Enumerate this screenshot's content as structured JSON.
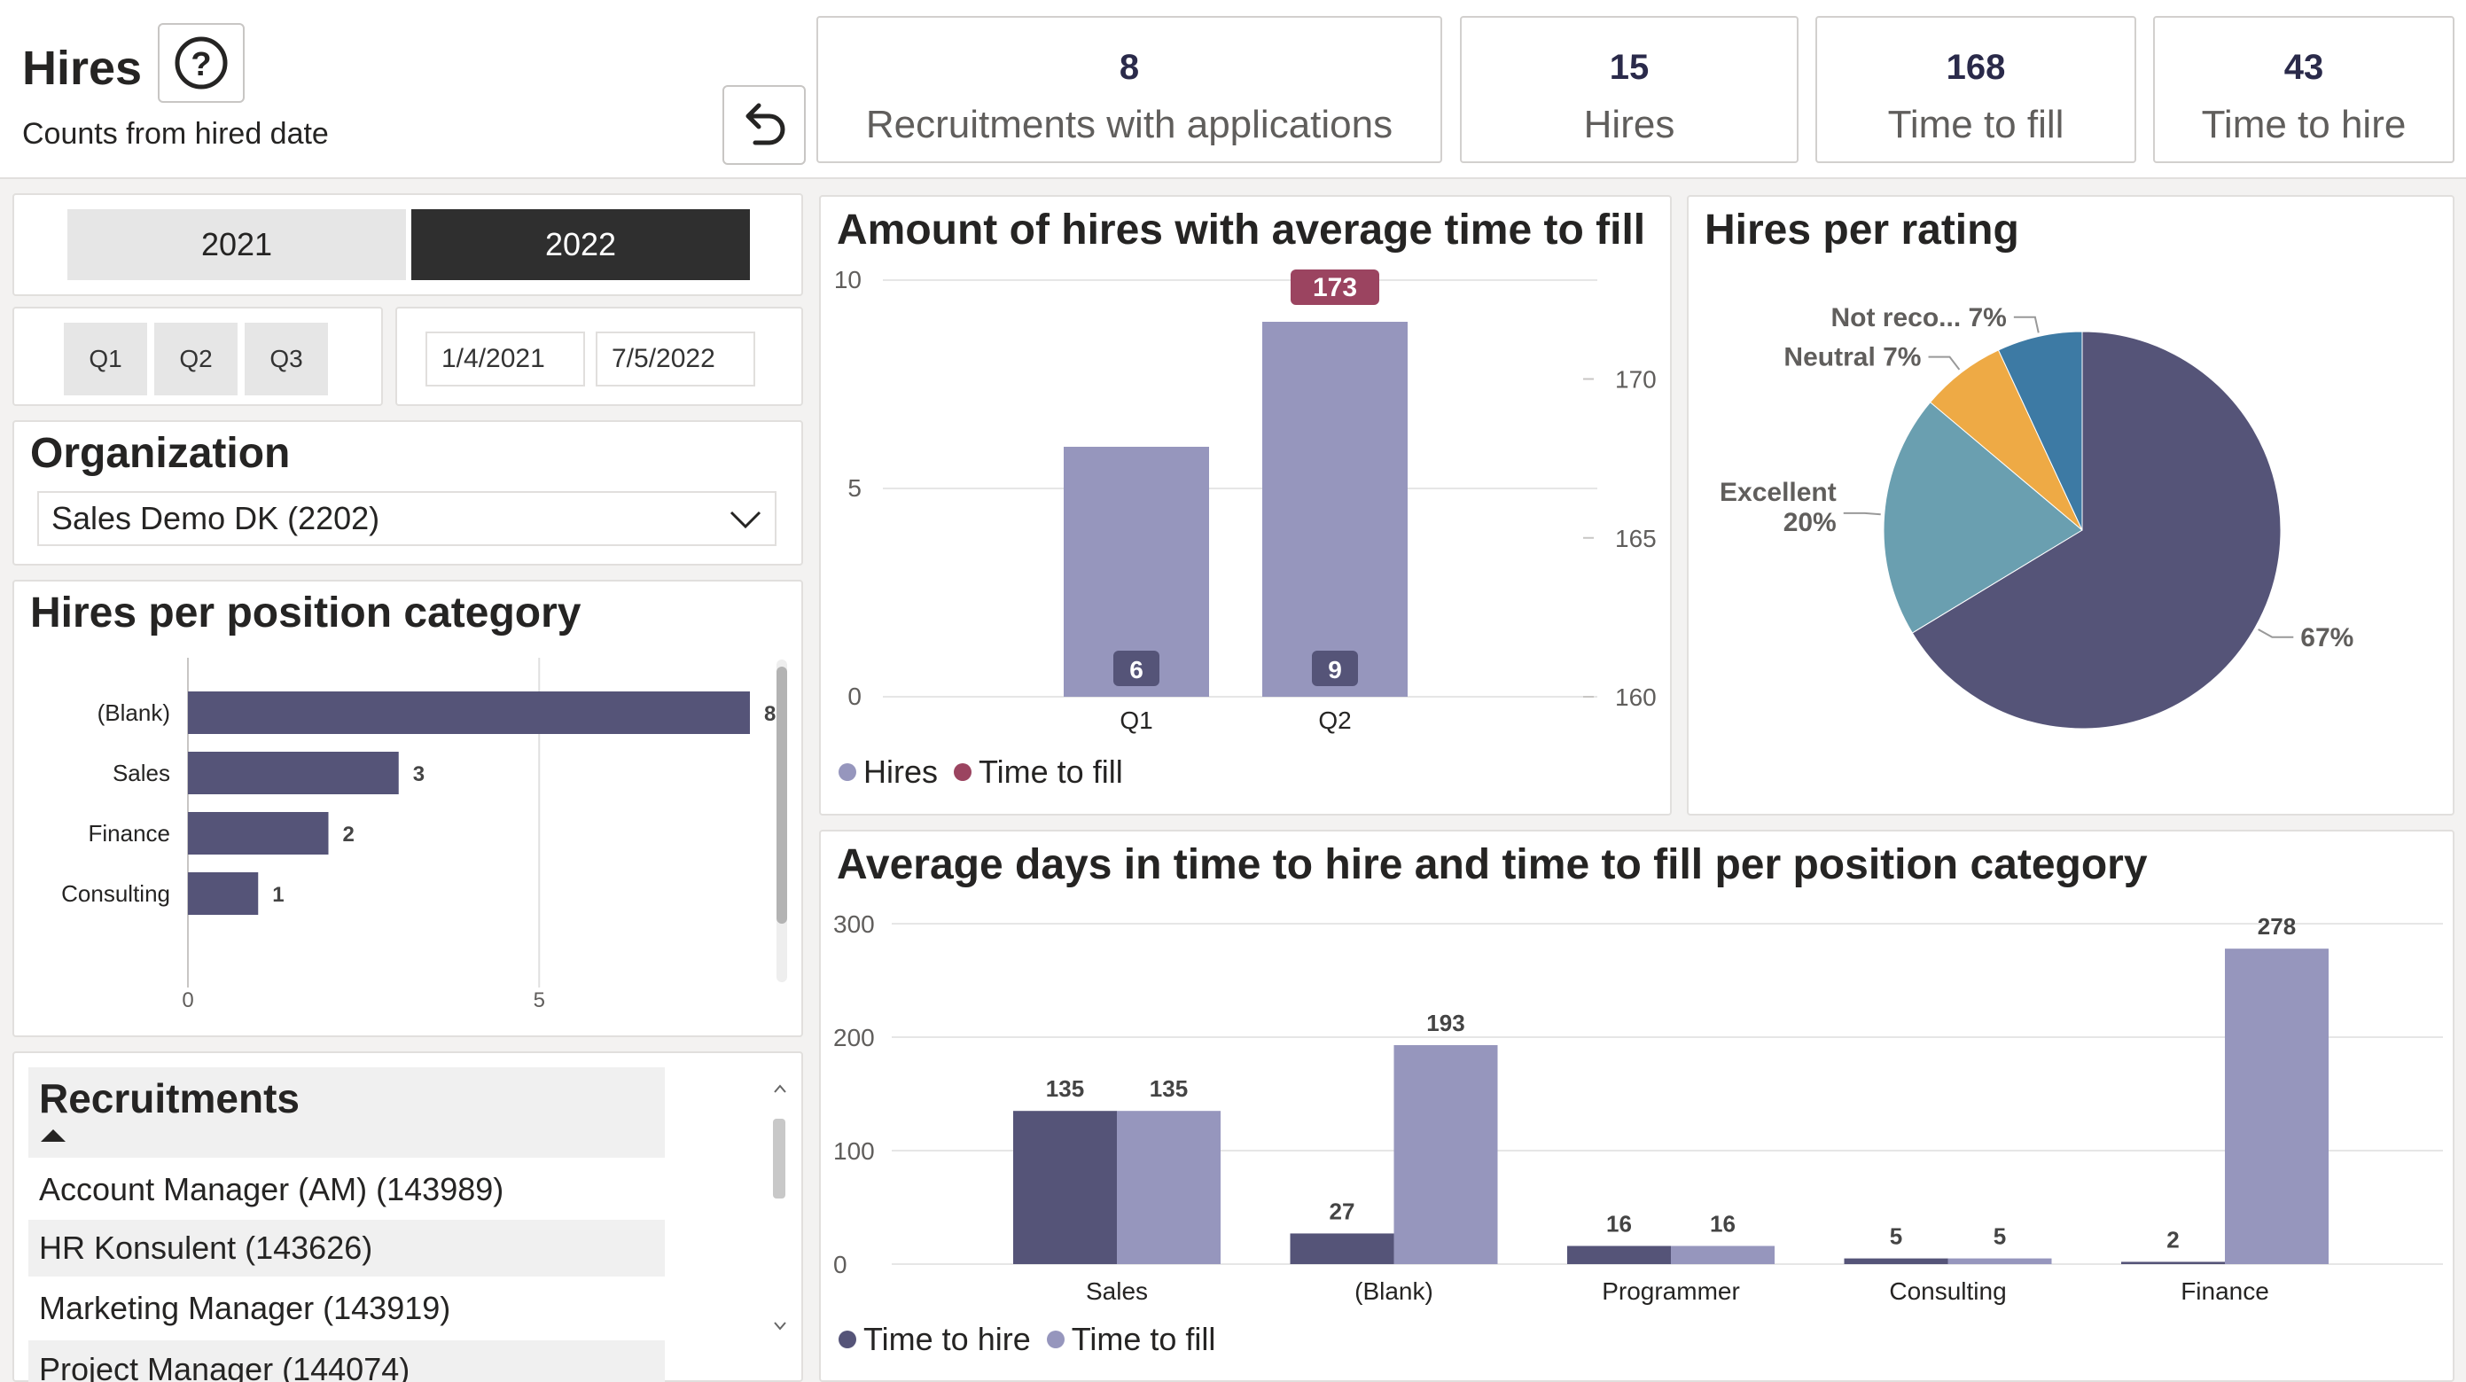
{
  "header": {
    "title": "Hires",
    "subtitle": "Counts from hired date",
    "help_icon": "question-circle-icon",
    "undo_icon": "undo-arrow-icon"
  },
  "kpis": [
    {
      "value": "8",
      "label": "Recruitments with applications"
    },
    {
      "value": "15",
      "label": "Hires"
    },
    {
      "value": "168",
      "label": "Time to fill"
    },
    {
      "value": "43",
      "label": "Time to hire"
    }
  ],
  "filters": {
    "years": [
      "2021",
      "2022"
    ],
    "selected_year": "2022",
    "quarters": [
      "Q1",
      "Q2",
      "Q3"
    ],
    "date_from": "1/4/2021",
    "date_to": "7/5/2022"
  },
  "organization": {
    "title": "Organization",
    "selected": "Sales Demo DK (2202)"
  },
  "recruitments": {
    "title": "Recruitments",
    "items": [
      "Account Manager (AM) (143989)",
      "HR Konsulent (143626)",
      "Marketing Manager (143919)",
      "Project Manager (144074)"
    ]
  },
  "colors": {
    "dark_series": "#555478",
    "light_series": "#9696bd",
    "time_to_fill_marker": "#9b4460",
    "pie_teal": "#6a9fb0",
    "pie_orange": "#eeaa45",
    "pie_blue": "#3d7aa4",
    "selected_year_bg": "#2f2f2f"
  },
  "chart_data": [
    {
      "id": "position",
      "type": "bar",
      "orientation": "horizontal",
      "title": "Hires per position category",
      "categories": [
        "(Blank)",
        "Sales",
        "Finance",
        "Consulting"
      ],
      "values": [
        8,
        3,
        2,
        1
      ],
      "xlim": [
        0,
        8
      ],
      "x_ticks": [
        0,
        5
      ],
      "grid": true
    },
    {
      "id": "hires",
      "type": "bar",
      "title": "Amount of hires with average time to fill",
      "categories": [
        "Q1",
        "Q2"
      ],
      "series": [
        {
          "name": "Hires",
          "values": [
            6,
            9
          ]
        },
        {
          "name": "Time to fill",
          "values": [
            null,
            173
          ]
        }
      ],
      "ylim": [
        0,
        10
      ],
      "y_ticks": [
        0,
        5,
        10
      ],
      "y2lim": [
        160,
        173
      ],
      "y2_ticks": [
        160,
        165,
        170
      ],
      "legend": "bottom-left"
    },
    {
      "id": "rating",
      "type": "pie",
      "title": "Hires per rating",
      "slices": [
        {
          "label": "",
          "value": 67,
          "display": "67%"
        },
        {
          "label": "Excellent",
          "value": 20,
          "display": "20%"
        },
        {
          "label": "Neutral",
          "value": 7,
          "display": "7%"
        },
        {
          "label": "Not reco...",
          "value": 7,
          "display": "7%"
        }
      ]
    },
    {
      "id": "avgdays",
      "type": "bar",
      "title": "Average days in time to hire and time to fill per position category",
      "categories": [
        "Sales",
        "(Blank)",
        "Programmer",
        "Consulting",
        "Finance"
      ],
      "series": [
        {
          "name": "Time to hire",
          "values": [
            135,
            27,
            16,
            5,
            2
          ]
        },
        {
          "name": "Time to fill",
          "values": [
            135,
            193,
            16,
            5,
            278
          ]
        }
      ],
      "ylim": [
        0,
        300
      ],
      "y_ticks": [
        0,
        100,
        200,
        300
      ],
      "legend": "bottom-left"
    }
  ]
}
